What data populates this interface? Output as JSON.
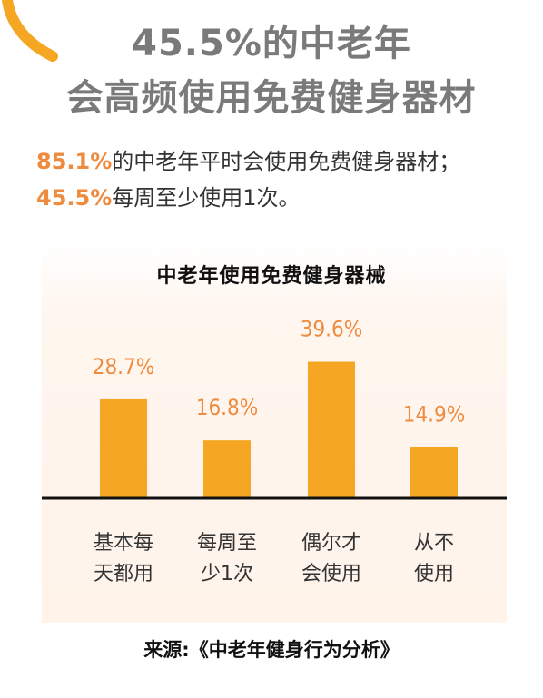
{
  "headline": {
    "line1": "45.5%的中老年",
    "line2": "会高频使用免费健身器材"
  },
  "summary": [
    {
      "pct": "85.1%",
      "text": "的中老年平时会使用免费健身器材；"
    },
    {
      "pct": "45.5%",
      "text": "每周至少使用1次。"
    }
  ],
  "colors": {
    "accent": "#ef8b3e",
    "bar": "#f5a623",
    "headline": "#7a7a7a",
    "baseline": "#111111"
  },
  "source_text": "来源:《中老年健身行为分析》",
  "chart_data": {
    "type": "bar",
    "title": "中老年使用免费健身器械",
    "categories": [
      [
        "基本每",
        "天都用"
      ],
      [
        "每周至",
        "少1次"
      ],
      [
        "偶尔才",
        "会使用"
      ],
      [
        "从不",
        "使用"
      ]
    ],
    "values": [
      28.7,
      16.8,
      39.6,
      14.9
    ],
    "value_labels": [
      "28.7%",
      "16.8%",
      "39.6%",
      "14.9%"
    ],
    "ylim": [
      0,
      40
    ],
    "grid": false
  }
}
